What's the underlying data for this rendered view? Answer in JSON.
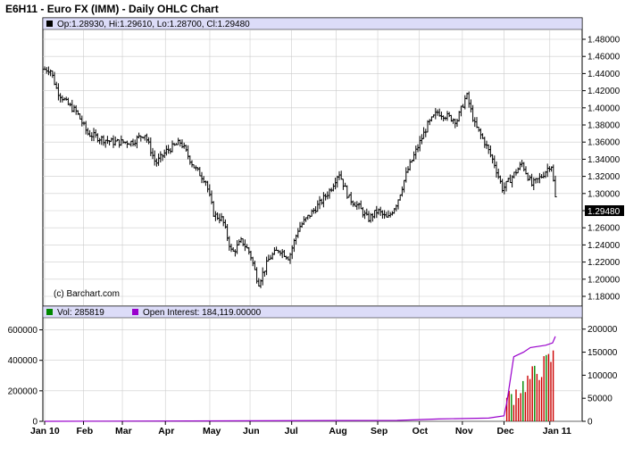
{
  "title": "E6H11 - Euro FX (IMM) - Daily OHLC Chart",
  "price_panel": {
    "info_label": "Op:1.28930, Hi:1.29610, Lo:1.28700, Cl:1.29480",
    "copyright": "(c) Barchart.com",
    "last_price_label": "1.29480",
    "ylim": [
      1.17,
      1.49
    ],
    "ticks": [
      "1.48000",
      "1.46000",
      "1.44000",
      "1.42000",
      "1.40000",
      "1.38000",
      "1.36000",
      "1.34000",
      "1.32000",
      "1.30000",
      "1.28000",
      "1.26000",
      "1.24000",
      "1.22000",
      "1.20000",
      "1.18000"
    ]
  },
  "volume_panel": {
    "vol_label": "Vol: 285819",
    "oi_label": "Open Interest: 184,119.00000",
    "left_ticks": [
      "600000",
      "400000",
      "200000",
      "0"
    ],
    "right_ticks": [
      "200000",
      "150000",
      "100000",
      "50000",
      "0"
    ],
    "vol_color": "#cc0000",
    "vol_alt_color": "#008800",
    "oi_color": "#9900cc",
    "legend_vol_color": "#008800",
    "legend_oi_color": "#9900cc"
  },
  "x_axis": {
    "labels": [
      "Jan 10",
      "Feb",
      "Mar",
      "Apr",
      "May",
      "Jun",
      "Jul",
      "Aug",
      "Sep",
      "Oct",
      "Nov",
      "Dec",
      "Jan 11"
    ]
  },
  "chart_data": {
    "type": "ohlc",
    "title": "E6H11 - Euro FX (IMM) - Daily OHLC Chart",
    "x_label": "",
    "y_label": "",
    "ylim": [
      1.17,
      1.49
    ],
    "last": {
      "open": 1.2893,
      "high": 1.2961,
      "low": 1.287,
      "close": 1.2948
    },
    "price_path": [
      [
        "2010-01-04",
        1.445
      ],
      [
        "2010-01-08",
        1.445
      ],
      [
        "2010-01-13",
        1.42
      ],
      [
        "2010-01-20",
        1.405
      ],
      [
        "2010-01-27",
        1.395
      ],
      [
        "2010-02-04",
        1.37
      ],
      [
        "2010-02-12",
        1.365
      ],
      [
        "2010-02-22",
        1.36
      ],
      [
        "2010-03-01",
        1.36
      ],
      [
        "2010-03-08",
        1.36
      ],
      [
        "2010-03-17",
        1.37
      ],
      [
        "2010-03-25",
        1.335
      ],
      [
        "2010-04-02",
        1.35
      ],
      [
        "2010-04-12",
        1.36
      ],
      [
        "2010-04-22",
        1.33
      ],
      [
        "2010-04-30",
        1.315
      ],
      [
        "2010-05-06",
        1.275
      ],
      [
        "2010-05-12",
        1.27
      ],
      [
        "2010-05-19",
        1.23
      ],
      [
        "2010-05-26",
        1.245
      ],
      [
        "2010-06-01",
        1.23
      ],
      [
        "2010-06-07",
        1.195
      ],
      [
        "2010-06-15",
        1.225
      ],
      [
        "2010-06-22",
        1.235
      ],
      [
        "2010-06-29",
        1.225
      ],
      [
        "2010-07-06",
        1.26
      ],
      [
        "2010-07-14",
        1.275
      ],
      [
        "2010-07-22",
        1.29
      ],
      [
        "2010-07-29",
        1.305
      ],
      [
        "2010-08-04",
        1.325
      ],
      [
        "2010-08-11",
        1.295
      ],
      [
        "2010-08-18",
        1.285
      ],
      [
        "2010-08-25",
        1.27
      ],
      [
        "2010-09-01",
        1.28
      ],
      [
        "2010-09-08",
        1.27
      ],
      [
        "2010-09-15",
        1.29
      ],
      [
        "2010-09-22",
        1.325
      ],
      [
        "2010-09-30",
        1.355
      ],
      [
        "2010-10-07",
        1.38
      ],
      [
        "2010-10-14",
        1.395
      ],
      [
        "2010-10-21",
        1.39
      ],
      [
        "2010-10-28",
        1.385
      ],
      [
        "2010-11-04",
        1.415
      ],
      [
        "2010-11-10",
        1.38
      ],
      [
        "2010-11-17",
        1.36
      ],
      [
        "2010-11-24",
        1.335
      ],
      [
        "2010-11-30",
        1.305
      ],
      [
        "2010-12-07",
        1.32
      ],
      [
        "2010-12-14",
        1.335
      ],
      [
        "2010-12-21",
        1.31
      ],
      [
        "2010-12-28",
        1.32
      ],
      [
        "2011-01-04",
        1.335
      ],
      [
        "2011-01-07",
        1.295
      ]
    ],
    "open_interest_path": [
      [
        "2010-01-04",
        0
      ],
      [
        "2010-09-15",
        2000
      ],
      [
        "2010-10-15",
        5000
      ],
      [
        "2010-11-20",
        7000
      ],
      [
        "2010-12-01",
        12000
      ],
      [
        "2010-12-03",
        40000
      ],
      [
        "2010-12-06",
        100000
      ],
      [
        "2010-12-08",
        140000
      ],
      [
        "2010-12-15",
        150000
      ],
      [
        "2010-12-20",
        160000
      ],
      [
        "2010-12-31",
        165000
      ],
      [
        "2011-01-05",
        170000
      ],
      [
        "2011-01-07",
        184119
      ]
    ],
    "volume_last": 285819
  }
}
